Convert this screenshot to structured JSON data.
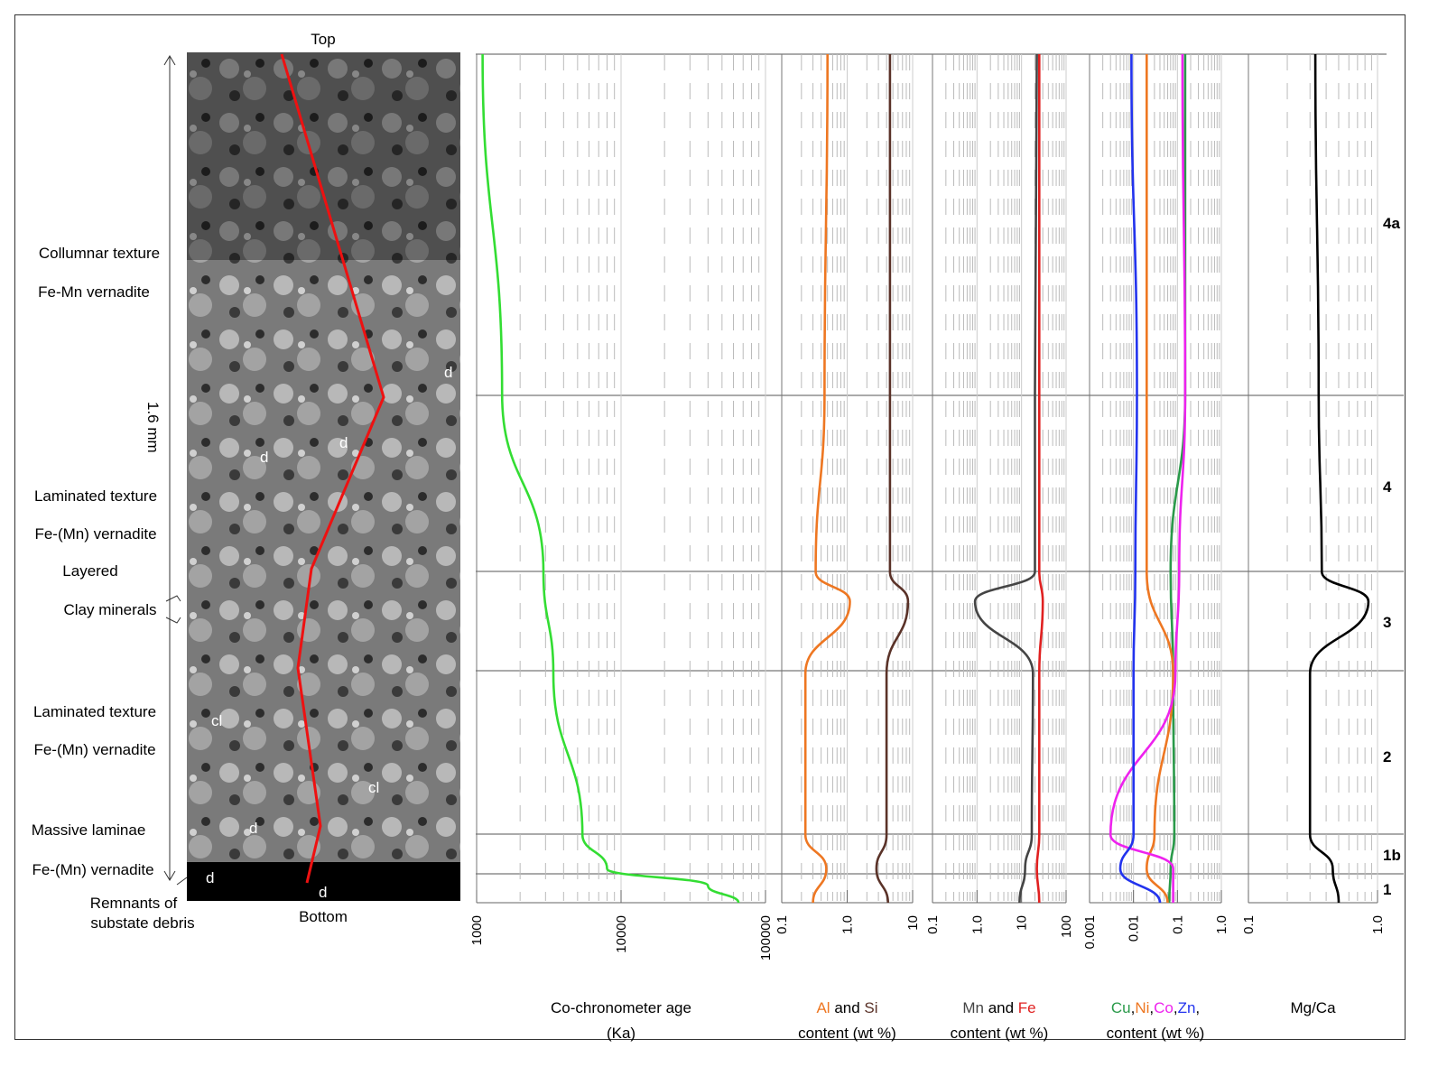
{
  "image_labels": {
    "top": "Top",
    "bottom": "Bottom",
    "scale": "1.6 mm",
    "d_marker": "d",
    "cl_marker": "cl"
  },
  "texture_labels": [
    "Collumnar texture",
    "Fe-Mn vernadite",
    "Laminated texture",
    "Fe-(Mn) vernadite",
    "Layered",
    "Clay minerals",
    "Laminated texture",
    "Fe-(Mn) vernadite",
    "Massive laminae",
    "Fe-(Mn) vernadite",
    "Remnants of",
    "substate debris"
  ],
  "zones": [
    "4a",
    "4",
    "3",
    "2",
    "1b",
    "1"
  ],
  "colors": {
    "age": "#33dd33",
    "al": "#ee7722",
    "si": "#5a3228",
    "mn": "#444444",
    "fe": "#e02020",
    "cu": "#2a9a4a",
    "ni": "#ee7722",
    "co": "#ee22ee",
    "zn": "#2233ee",
    "mgca": "#000000"
  },
  "chart_data": [
    {
      "type": "line",
      "xlabel": "Co-chronometer age",
      "xunit": "(Ka)",
      "xscale": "log",
      "xlim": [
        1000,
        100000
      ],
      "ticks": [
        "1000",
        "10000",
        "100000"
      ],
      "series": [
        {
          "key": "age",
          "points": [
            [
              1100,
              0
            ],
            [
              1500,
              0.4
            ],
            [
              2900,
              0.61
            ],
            [
              3400,
              0.73
            ],
            [
              5400,
              0.92
            ],
            [
              8000,
              0.96
            ],
            [
              40000,
              0.98
            ],
            [
              65000,
              1.0
            ]
          ]
        }
      ]
    },
    {
      "type": "line",
      "xlabel_parts": [
        {
          "text": "Al",
          "color": "al"
        },
        {
          "text": " and ",
          "color": null
        },
        {
          "text": "Si",
          "color": "si"
        }
      ],
      "xunit": "content (wt %)",
      "xscale": "log",
      "xlim": [
        0.1,
        10
      ],
      "ticks": [
        "0.1",
        "1.0",
        "10"
      ],
      "series": [
        {
          "key": "al",
          "points": [
            [
              0.5,
              0
            ],
            [
              0.45,
              0.4
            ],
            [
              0.33,
              0.61
            ],
            [
              1.1,
              0.645
            ],
            [
              0.23,
              0.73
            ],
            [
              0.23,
              0.92
            ],
            [
              0.48,
              0.96
            ],
            [
              0.3,
              1.0
            ]
          ]
        },
        {
          "key": "si",
          "points": [
            [
              4.5,
              0
            ],
            [
              4.5,
              0.4
            ],
            [
              4.5,
              0.61
            ],
            [
              8.5,
              0.645
            ],
            [
              4.0,
              0.73
            ],
            [
              4.0,
              0.92
            ],
            [
              2.8,
              0.96
            ],
            [
              4.2,
              1.0
            ]
          ]
        }
      ]
    },
    {
      "type": "line",
      "xlabel_parts": [
        {
          "text": "Mn",
          "color": "mn"
        },
        {
          "text": " and ",
          "color": null
        },
        {
          "text": "Fe",
          "color": "fe"
        }
      ],
      "xunit": "content (wt %)",
      "xscale": "log",
      "xlim": [
        0.1,
        100
      ],
      "ticks": [
        "0.1",
        "1.0",
        "10",
        "100"
      ],
      "series": [
        {
          "key": "mn",
          "points": [
            [
              22,
              0
            ],
            [
              20,
              0.4
            ],
            [
              20,
              0.61
            ],
            [
              0.9,
              0.645
            ],
            [
              18,
              0.73
            ],
            [
              17,
              0.92
            ],
            [
              12,
              0.96
            ],
            [
              9,
              1.0
            ]
          ]
        },
        {
          "key": "fe",
          "points": [
            [
              25,
              0
            ],
            [
              25,
              0.4
            ],
            [
              25,
              0.61
            ],
            [
              30,
              0.645
            ],
            [
              25,
              0.73
            ],
            [
              25,
              0.92
            ],
            [
              22,
              0.96
            ],
            [
              25,
              1.0
            ]
          ]
        }
      ]
    },
    {
      "type": "line",
      "xlabel_parts": [
        {
          "text": "Cu",
          "color": "cu"
        },
        {
          "text": ",",
          "color": null
        },
        {
          "text": "Ni",
          "color": "ni"
        },
        {
          "text": ",",
          "color": null
        },
        {
          "text": "Co",
          "color": "co"
        },
        {
          "text": ",",
          "color": null
        },
        {
          "text": "Zn",
          "color": "zn"
        },
        {
          "text": ",",
          "color": null
        }
      ],
      "xunit": "content (wt %)",
      "xscale": "log",
      "xlim": [
        0.001,
        1.0
      ],
      "ticks": [
        "0.001",
        "0.01",
        "0.1",
        "1.0"
      ],
      "series": [
        {
          "key": "cu",
          "points": [
            [
              0.15,
              0
            ],
            [
              0.15,
              0.4
            ],
            [
              0.07,
              0.61
            ],
            [
              0.08,
              0.73
            ],
            [
              0.085,
              0.92
            ],
            [
              0.07,
              0.96
            ],
            [
              0.065,
              1.0
            ]
          ]
        },
        {
          "key": "ni",
          "points": [
            [
              0.02,
              0
            ],
            [
              0.02,
              0.4
            ],
            [
              0.02,
              0.61
            ],
            [
              0.08,
              0.73
            ],
            [
              0.03,
              0.92
            ],
            [
              0.02,
              0.96
            ],
            [
              0.06,
              1.0
            ]
          ]
        },
        {
          "key": "co",
          "points": [
            [
              0.13,
              0
            ],
            [
              0.15,
              0.4
            ],
            [
              0.11,
              0.61
            ],
            [
              0.09,
              0.73
            ],
            [
              0.003,
              0.92
            ],
            [
              0.08,
              0.96
            ],
            [
              0.08,
              1.0
            ]
          ]
        },
        {
          "key": "zn",
          "points": [
            [
              0.009,
              0
            ],
            [
              0.012,
              0.4
            ],
            [
              0.011,
              0.61
            ],
            [
              0.01,
              0.73
            ],
            [
              0.01,
              0.92
            ],
            [
              0.005,
              0.96
            ],
            [
              0.04,
              1.0
            ]
          ]
        }
      ]
    },
    {
      "type": "line",
      "xlabel": "Mg/Ca",
      "xunit": "",
      "xscale": "log",
      "xlim": [
        0.1,
        1.0
      ],
      "ticks": [
        "0.1",
        "1.0"
      ],
      "series": [
        {
          "key": "mgca",
          "points": [
            [
              0.33,
              0
            ],
            [
              0.35,
              0.4
            ],
            [
              0.37,
              0.61
            ],
            [
              0.85,
              0.645
            ],
            [
              0.3,
              0.73
            ],
            [
              0.3,
              0.92
            ],
            [
              0.45,
              0.96
            ],
            [
              0.5,
              1.0
            ]
          ]
        }
      ]
    }
  ]
}
